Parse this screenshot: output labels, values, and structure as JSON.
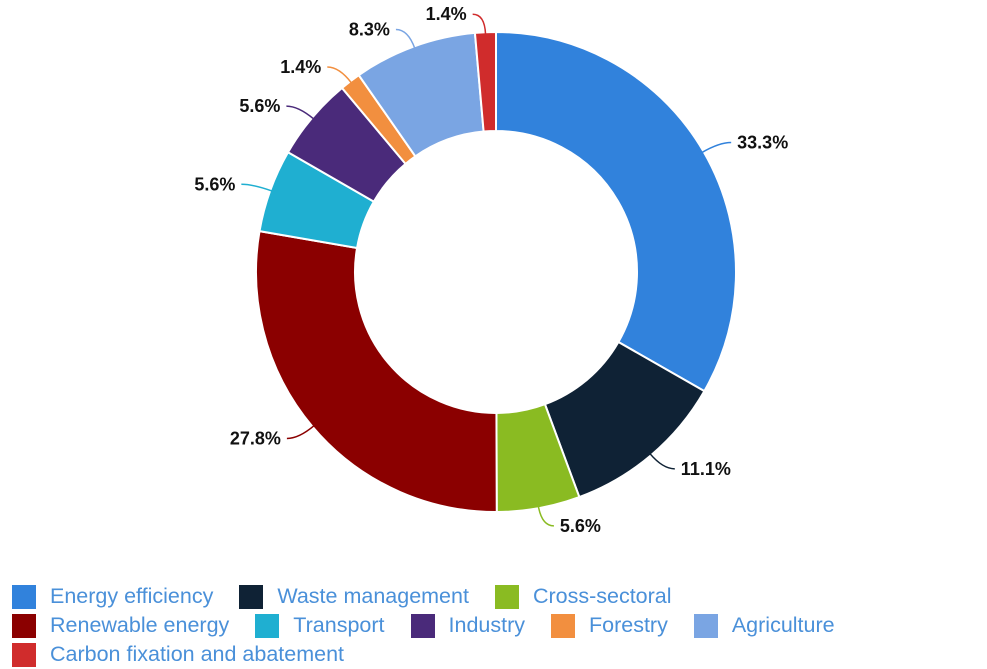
{
  "chart_data": {
    "type": "pie",
    "variant": "donut",
    "categories": [
      "Energy efficiency",
      "Waste management",
      "Cross-sectoral",
      "Renewable energy",
      "Transport",
      "Industry",
      "Forestry",
      "Agriculture",
      "Carbon fixation and abatement"
    ],
    "values": [
      33.3,
      11.1,
      5.6,
      27.8,
      5.6,
      5.6,
      1.4,
      8.3,
      1.4
    ],
    "data_labels": [
      "33.3%",
      "11.1%",
      "5.6%",
      "27.8%",
      "5.6%",
      "5.6%",
      "1.4%",
      "8.3%",
      "1.4%"
    ],
    "colors": [
      "#3182dc",
      "#0f2235",
      "#8abb22",
      "#8b0000",
      "#1fafd1",
      "#4a2a7a",
      "#f28f3f",
      "#7aa5e3",
      "#d02c2c"
    ],
    "legend_position": "bottom",
    "legend_label_color": "#4a90d9"
  }
}
